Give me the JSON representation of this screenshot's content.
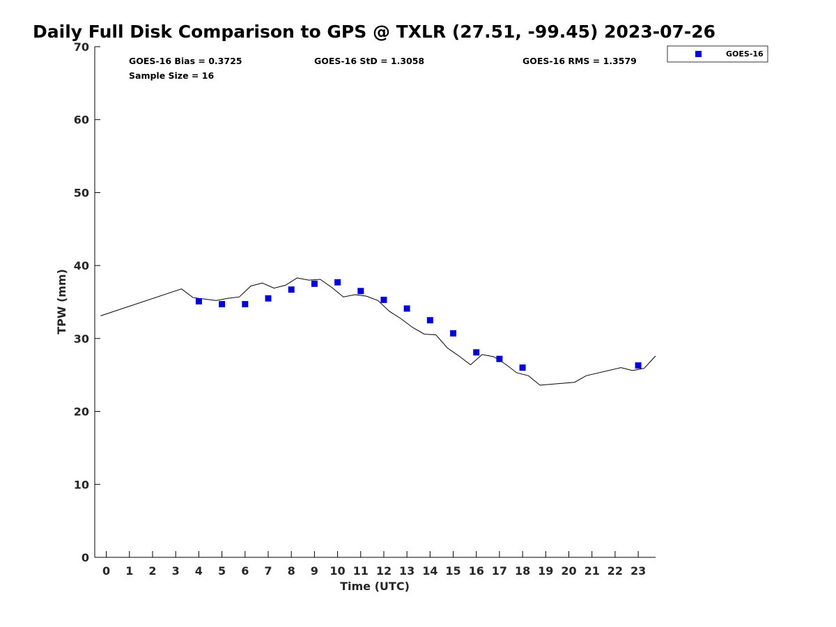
{
  "chart_data": {
    "type": "scatter",
    "title": "Daily Full Disk Comparison to GPS @ TXLR (27.51, -99.45) 2023-07-26",
    "xlabel": "Time (UTC)",
    "ylabel": "TPW (mm)",
    "xlim": [
      -0.5,
      23.75
    ],
    "ylim": [
      0,
      70
    ],
    "xticks": [
      0,
      1,
      2,
      3,
      4,
      5,
      6,
      7,
      8,
      9,
      10,
      11,
      12,
      13,
      14,
      15,
      16,
      17,
      18,
      19,
      20,
      21,
      22,
      23
    ],
    "yticks": [
      0,
      10,
      20,
      30,
      40,
      50,
      60,
      70
    ],
    "grid": false,
    "legend": {
      "position": "top-right outside",
      "entries": [
        "GOES-16"
      ]
    },
    "stats": {
      "bias": "GOES-16 Bias = 0.3725",
      "std": "GOES-16 StD = 1.3058",
      "rms": "GOES-16 RMS = 1.3579",
      "sample": "Sample Size = 16"
    },
    "series": [
      {
        "name": "GOES-16",
        "kind": "scatter",
        "color": "#0000dd",
        "marker": "square",
        "x": [
          4,
          5,
          6,
          7,
          8,
          9,
          10,
          11,
          12,
          13,
          14,
          15,
          16,
          17,
          18,
          23
        ],
        "y": [
          35.1,
          34.7,
          34.7,
          35.5,
          36.7,
          37.5,
          37.7,
          36.5,
          35.3,
          34.1,
          32.5,
          30.7,
          28.1,
          27.2,
          26.0,
          26.3
        ]
      },
      {
        "kind": "line",
        "color": "#000000",
        "x": [
          -0.25,
          3.25,
          3.75,
          4.25,
          4.75,
          5.25,
          5.75,
          6.25,
          6.75,
          7.25,
          7.75,
          8.25,
          8.75,
          9.25,
          9.75,
          10.25,
          10.75,
          11.25,
          11.75,
          12.25,
          12.75,
          13.25,
          13.75,
          14.25,
          14.75,
          15.25,
          15.75,
          16.25,
          16.75,
          17.25,
          17.75,
          18.25,
          18.75,
          20.25,
          20.75,
          22.25,
          22.75,
          23.25,
          23.75
        ],
        "y": [
          33.1,
          36.8,
          35.6,
          35.4,
          35.2,
          35.5,
          35.7,
          37.2,
          37.6,
          36.9,
          37.3,
          38.3,
          38.0,
          38.1,
          37.0,
          35.7,
          36.0,
          35.8,
          35.2,
          33.7,
          32.7,
          31.5,
          30.6,
          30.5,
          28.7,
          27.6,
          26.4,
          27.8,
          27.5,
          26.5,
          25.3,
          24.9,
          23.6,
          24.0,
          24.9,
          26.0,
          25.6,
          25.9,
          27.6
        ]
      }
    ]
  }
}
